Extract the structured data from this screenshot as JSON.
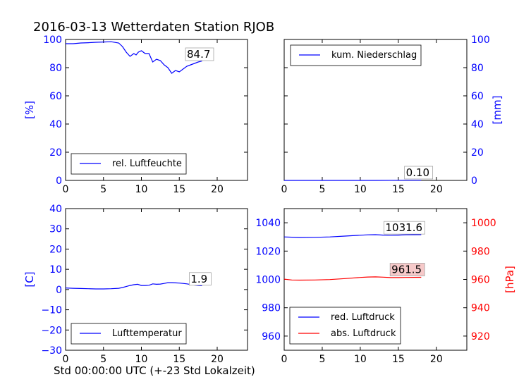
{
  "title": "2016-03-13 Wetterdaten Station RJOB",
  "footer_label": "Std 00:00:00 UTC (+-23 Std Lokalzeit)",
  "colors": {
    "blue": "#0000ff",
    "red": "#ff0000",
    "black": "#000000"
  },
  "chart_data": [
    {
      "type": "line",
      "title": "",
      "xlabel": "",
      "ylabel": "[%]",
      "xlim": [
        0,
        24
      ],
      "ylim": [
        0,
        100
      ],
      "xticks": [
        0,
        5,
        10,
        15,
        20
      ],
      "yticks": [
        0,
        20,
        40,
        60,
        80,
        100
      ],
      "ytick_side": "left",
      "legend_placement": "lower-left",
      "annotations": [
        {
          "text": "84.7",
          "x": 16.0,
          "y": 87
        }
      ],
      "series": [
        {
          "name": "rel. Luftfeuchte",
          "color": "#0000ff",
          "x": [
            0,
            1,
            2,
            3,
            4,
            5,
            6,
            7,
            7.5,
            8,
            8.5,
            9,
            9.3,
            9.6,
            10,
            10.5,
            11,
            11.5,
            12,
            12.5,
            13,
            13.5,
            14,
            14.5,
            15,
            15.5,
            16,
            16.5,
            17,
            17.5,
            18
          ],
          "y": [
            97,
            97,
            97.5,
            97.7,
            98,
            98.2,
            98.4,
            97.5,
            95,
            91,
            88,
            90,
            89,
            91,
            92,
            90,
            90,
            84,
            86,
            85,
            82,
            80,
            76,
            78,
            77,
            79,
            81,
            82,
            83,
            84,
            84.7
          ]
        }
      ]
    },
    {
      "type": "line",
      "title": "",
      "xlabel": "",
      "ylabel": "[mm]",
      "xlim": [
        0,
        24
      ],
      "ylim": [
        0,
        100
      ],
      "xticks": [
        0,
        5,
        10,
        15,
        20
      ],
      "yticks": [
        0,
        20,
        40,
        60,
        80,
        100
      ],
      "ytick_side": "right",
      "legend_placement": "upper-left",
      "annotations": [
        {
          "text": "0.10",
          "x": 16.0,
          "y": 3
        }
      ],
      "series": [
        {
          "name": "kum. Niederschlag",
          "color": "#0000ff",
          "x": [
            0,
            4,
            8,
            12,
            16,
            18
          ],
          "y": [
            0,
            0,
            0,
            0,
            0.1,
            0.1
          ]
        }
      ]
    },
    {
      "type": "line",
      "title": "",
      "xlabel": "",
      "ylabel": "[C]",
      "xlim": [
        0,
        24
      ],
      "ylim": [
        -30,
        40
      ],
      "xticks": [
        0,
        5,
        10,
        15,
        20
      ],
      "yticks": [
        -30,
        -20,
        -10,
        0,
        10,
        20,
        30,
        40
      ],
      "ytick_side": "left",
      "legend_placement": "lower-left",
      "annotations": [
        {
          "text": "1.9",
          "x": 16.5,
          "y": 3.5
        }
      ],
      "series": [
        {
          "name": "Lufttemperatur",
          "color": "#0000ff",
          "x": [
            0,
            1,
            2,
            3,
            4,
            5,
            6,
            7,
            7.5,
            8,
            8.5,
            9,
            9.5,
            10,
            10.5,
            11,
            11.5,
            12,
            12.5,
            13,
            13.5,
            14,
            14.5,
            15,
            15.5,
            16,
            16.5,
            17,
            17.5,
            18
          ],
          "y": [
            0.8,
            0.6,
            0.5,
            0.4,
            0.3,
            0.3,
            0.4,
            0.6,
            1.0,
            1.5,
            2.0,
            2.4,
            2.6,
            2.0,
            2.0,
            2.1,
            2.8,
            2.6,
            2.7,
            3.0,
            3.4,
            3.4,
            3.3,
            3.2,
            3.0,
            2.8,
            2.5,
            2.2,
            2.0,
            1.9
          ]
        }
      ]
    },
    {
      "type": "line",
      "title": "",
      "xlabel": "",
      "ylabel": "",
      "ylabel_right": "[hPa]",
      "xlim": [
        0,
        24
      ],
      "ylim": [
        950,
        1050
      ],
      "ylim_right": [
        910,
        1010
      ],
      "xticks": [
        0,
        5,
        10,
        15,
        20
      ],
      "yticks": [
        960,
        980,
        1000,
        1020,
        1040
      ],
      "yticks_right": [
        920,
        940,
        960,
        980,
        1000
      ],
      "legend_placement": "lower-left",
      "annotations": [
        {
          "text": "1031.6",
          "x": 13.3,
          "y": 1034,
          "axis": "left",
          "box_fill": "#ffffff"
        },
        {
          "text": "961.5",
          "x": 14.1,
          "y": 964.5,
          "axis": "right",
          "box_fill": "#f6c9c9"
        }
      ],
      "series": [
        {
          "name": "red. Luftdruck",
          "color": "#0000ff",
          "axis": "left",
          "x": [
            0,
            2,
            4,
            6,
            8,
            10,
            11,
            12,
            13,
            14,
            15,
            16,
            18
          ],
          "y": [
            1030,
            1029.6,
            1029.7,
            1030,
            1030.6,
            1031.2,
            1031.5,
            1031.6,
            1031.3,
            1031.2,
            1031.3,
            1031.5,
            1031.6
          ]
        },
        {
          "name": "abs. Luftdruck",
          "color": "#ff0000",
          "axis": "right",
          "x": [
            0,
            1,
            2,
            4,
            6,
            8,
            10,
            11,
            12,
            13,
            14,
            15,
            16,
            18
          ],
          "y": [
            960.2,
            959.6,
            959.5,
            959.6,
            959.9,
            960.6,
            961.4,
            961.7,
            961.8,
            961.6,
            961.3,
            961.3,
            961.4,
            961.5
          ]
        }
      ]
    }
  ]
}
